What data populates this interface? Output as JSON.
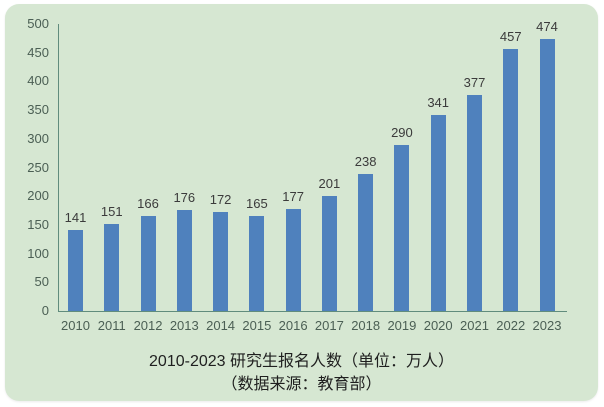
{
  "chart_data": {
    "type": "bar",
    "categories": [
      "2010",
      "2011",
      "2012",
      "2013",
      "2014",
      "2015",
      "2016",
      "2017",
      "2018",
      "2019",
      "2020",
      "2021",
      "2022",
      "2023"
    ],
    "values": [
      141,
      151,
      166,
      176,
      172,
      165,
      177,
      201,
      238,
      290,
      341,
      377,
      457,
      474
    ],
    "title": "2010-2023 研究生报名人数（单位：万人）",
    "subtitle": "（数据来源：教育部）",
    "xlabel": "",
    "ylabel": "",
    "ylim": [
      0,
      500
    ],
    "yticks": [
      0,
      50,
      100,
      150,
      200,
      250,
      300,
      350,
      400,
      450,
      500
    ],
    "grid": false,
    "legend": "none",
    "value_labels_shown": true,
    "colors": {
      "bar": "#4f81bd",
      "panel_background": "#d6e7d2",
      "page_background": "#ffffff",
      "axis_line": "#618c7d",
      "tick_label": "#4b5f54",
      "value_label": "#3b3b3b",
      "title_text": "#1f1f1f"
    }
  }
}
